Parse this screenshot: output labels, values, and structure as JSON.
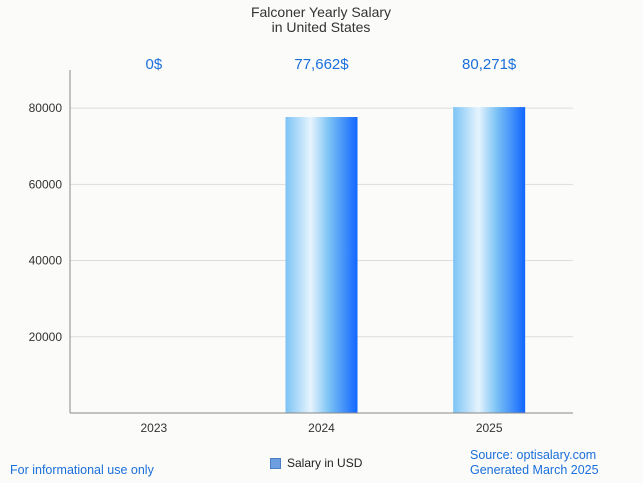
{
  "chart_data": {
    "type": "bar",
    "title": [
      "Falconer Yearly Salary",
      "in United States"
    ],
    "categories": [
      "2023",
      "2024",
      "2025"
    ],
    "series": [
      {
        "name": "Salary in USD",
        "values": [
          0,
          77662,
          80271
        ]
      }
    ],
    "data_labels": [
      "0$",
      "77,662$",
      "80,271$"
    ],
    "yticks": [
      20000,
      40000,
      60000,
      80000
    ],
    "ylim": [
      0,
      90000
    ],
    "xlabel": "",
    "ylabel": "",
    "grid": true,
    "legend_position": "bottom-center"
  },
  "colors": {
    "bar_light": "#e6f4fd",
    "bar_mid": "#7cc3f5",
    "bar_dark": "#1166ff",
    "label": "#1a6fdb",
    "grid": "#dddddd",
    "axis": "#888888"
  },
  "footer": {
    "left": "For informational use only",
    "source": "Source: optisalary.com",
    "generated": "Generated March 2025"
  }
}
